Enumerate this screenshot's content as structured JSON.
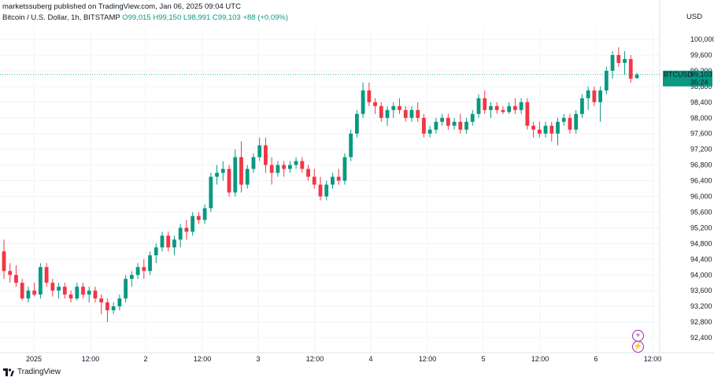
{
  "header": {
    "publisher": "marketssuberg published on TradingView.com, Jan 06, 2025 09:04 UTC"
  },
  "info": {
    "symbol_desc": "Bitcoin / U.S. Dollar, 1h, BITSTAMP",
    "open": "O99,015",
    "high": "H99,150",
    "low": "L98,991",
    "close": "C99,103",
    "change": "+88 (+0.09%)"
  },
  "currency": "USD",
  "price_label": {
    "symbol": "BTCUSD",
    "price": "99,103",
    "countdown": "35:24"
  },
  "footer": {
    "brand": "TradingView"
  },
  "colors": {
    "up": "#089981",
    "down": "#f23645",
    "grid": "#f0f3fa",
    "accent": "#9c27b0"
  },
  "icons": [
    "plus-circle-icon",
    "lightning-icon"
  ],
  "chart_data": {
    "type": "candlestick",
    "y_ticks": [
      "100,000",
      "99,600",
      "99,200",
      "98,800",
      "98,400",
      "98,000",
      "97,600",
      "97,200",
      "96,800",
      "96,400",
      "96,000",
      "95,600",
      "95,200",
      "94,800",
      "94,400",
      "94,000",
      "93,600",
      "93,200",
      "92,800",
      "92,400"
    ],
    "x_ticks": [
      "2025",
      "12:00",
      "2",
      "12:00",
      "3",
      "12:00",
      "4",
      "12:00",
      "5",
      "12:00",
      "6",
      "12:00"
    ],
    "ylim": [
      92100,
      100300
    ],
    "last_price": 99103,
    "ohlc": [
      [
        94600,
        94900,
        93900,
        94100
      ],
      [
        94100,
        94300,
        93800,
        94000
      ],
      [
        94000,
        94250,
        93700,
        93800
      ],
      [
        93800,
        93900,
        93350,
        93400
      ],
      [
        93400,
        93700,
        93300,
        93600
      ],
      [
        93600,
        93800,
        93450,
        93500
      ],
      [
        93500,
        94300,
        93400,
        94200
      ],
      [
        94200,
        94300,
        93700,
        93800
      ],
      [
        93800,
        93900,
        93450,
        93600
      ],
      [
        93600,
        93800,
        93400,
        93700
      ],
      [
        93700,
        93800,
        93400,
        93500
      ],
      [
        93500,
        93600,
        93300,
        93400
      ],
      [
        93400,
        93800,
        93350,
        93700
      ],
      [
        93700,
        93800,
        93400,
        93500
      ],
      [
        93500,
        93700,
        93300,
        93600
      ],
      [
        93600,
        93700,
        93300,
        93400
      ],
      [
        93400,
        93500,
        93000,
        93300
      ],
      [
        93300,
        93400,
        92800,
        93100
      ],
      [
        93100,
        93300,
        93000,
        93200
      ],
      [
        93200,
        93500,
        93100,
        93400
      ],
      [
        93400,
        94000,
        93300,
        93900
      ],
      [
        93900,
        94100,
        93700,
        94000
      ],
      [
        94000,
        94300,
        93900,
        94200
      ],
      [
        94200,
        94400,
        93900,
        94100
      ],
      [
        94100,
        94600,
        94000,
        94500
      ],
      [
        94500,
        94800,
        94300,
        94700
      ],
      [
        94700,
        95100,
        94600,
        95000
      ],
      [
        95000,
        95100,
        94600,
        94700
      ],
      [
        94700,
        95000,
        94500,
        94900
      ],
      [
        94900,
        95300,
        94700,
        95200
      ],
      [
        95200,
        95400,
        94900,
        95100
      ],
      [
        95100,
        95600,
        95000,
        95500
      ],
      [
        95500,
        95600,
        95300,
        95400
      ],
      [
        95400,
        95800,
        95300,
        95700
      ],
      [
        95700,
        96600,
        95600,
        96500
      ],
      [
        96500,
        96800,
        96300,
        96600
      ],
      [
        96600,
        96900,
        96400,
        96700
      ],
      [
        96700,
        96800,
        96000,
        96100
      ],
      [
        96100,
        97200,
        96000,
        97000
      ],
      [
        97000,
        97400,
        96100,
        96300
      ],
      [
        96300,
        96800,
        96200,
        96700
      ],
      [
        96700,
        97100,
        96600,
        97000
      ],
      [
        97000,
        97500,
        96900,
        97300
      ],
      [
        97300,
        97500,
        96600,
        96800
      ],
      [
        96800,
        97000,
        96300,
        96600
      ],
      [
        96600,
        96900,
        96500,
        96800
      ],
      [
        96800,
        96900,
        96500,
        96700
      ],
      [
        96700,
        96900,
        96600,
        96800
      ],
      [
        96800,
        97000,
        96700,
        96900
      ],
      [
        96900,
        97000,
        96600,
        96700
      ],
      [
        96700,
        96800,
        96400,
        96500
      ],
      [
        96500,
        96700,
        96200,
        96300
      ],
      [
        96300,
        96500,
        95900,
        96000
      ],
      [
        96000,
        96400,
        95900,
        96300
      ],
      [
        96300,
        96600,
        96200,
        96500
      ],
      [
        96500,
        96700,
        96300,
        96400
      ],
      [
        96400,
        97100,
        96300,
        97000
      ],
      [
        97000,
        97700,
        96900,
        97600
      ],
      [
        97600,
        98200,
        97500,
        98100
      ],
      [
        98100,
        98900,
        98000,
        98700
      ],
      [
        98700,
        98900,
        98300,
        98400
      ],
      [
        98400,
        98500,
        98100,
        98300
      ],
      [
        98300,
        98400,
        97900,
        98000
      ],
      [
        98000,
        98300,
        97800,
        98200
      ],
      [
        98200,
        98400,
        98000,
        98300
      ],
      [
        98300,
        98500,
        98100,
        98200
      ],
      [
        98200,
        98300,
        97900,
        98000
      ],
      [
        98000,
        98300,
        97900,
        98200
      ],
      [
        98200,
        98400,
        97900,
        98000
      ],
      [
        98000,
        98100,
        97500,
        97600
      ],
      [
        97600,
        97800,
        97500,
        97700
      ],
      [
        97700,
        98000,
        97600,
        97900
      ],
      [
        97900,
        98100,
        97800,
        98000
      ],
      [
        98000,
        98100,
        97700,
        97800
      ],
      [
        97800,
        98000,
        97700,
        97900
      ],
      [
        97900,
        98100,
        97600,
        97700
      ],
      [
        97700,
        98000,
        97600,
        97900
      ],
      [
        97900,
        98200,
        97800,
        98100
      ],
      [
        98100,
        98600,
        98000,
        98500
      ],
      [
        98500,
        98700,
        98100,
        98200
      ],
      [
        98200,
        98400,
        98000,
        98300
      ],
      [
        98300,
        98400,
        98100,
        98200
      ],
      [
        98200,
        98300,
        98100,
        98150
      ],
      [
        98150,
        98400,
        98100,
        98300
      ],
      [
        98300,
        98500,
        98100,
        98200
      ],
      [
        98200,
        98500,
        98100,
        98400
      ],
      [
        98400,
        98500,
        97700,
        97800
      ],
      [
        97800,
        97900,
        97500,
        97700
      ],
      [
        97700,
        97900,
        97500,
        97600
      ],
      [
        97600,
        97900,
        97500,
        97800
      ],
      [
        97800,
        97900,
        97400,
        97600
      ],
      [
        97600,
        98000,
        97300,
        97900
      ],
      [
        97900,
        98100,
        97800,
        98000
      ],
      [
        98000,
        98100,
        97600,
        97700
      ],
      [
        97700,
        98200,
        97600,
        98100
      ],
      [
        98100,
        98600,
        98000,
        98500
      ],
      [
        98500,
        98800,
        98200,
        98700
      ],
      [
        98700,
        98800,
        98300,
        98400
      ],
      [
        98400,
        98800,
        97900,
        98700
      ],
      [
        98700,
        99300,
        98600,
        99200
      ],
      [
        99200,
        99700,
        99000,
        99600
      ],
      [
        99600,
        99800,
        99300,
        99400
      ],
      [
        99400,
        99700,
        99100,
        99500
      ],
      [
        99500,
        99600,
        98900,
        99000
      ],
      [
        99015,
        99150,
        98991,
        99103
      ]
    ]
  }
}
